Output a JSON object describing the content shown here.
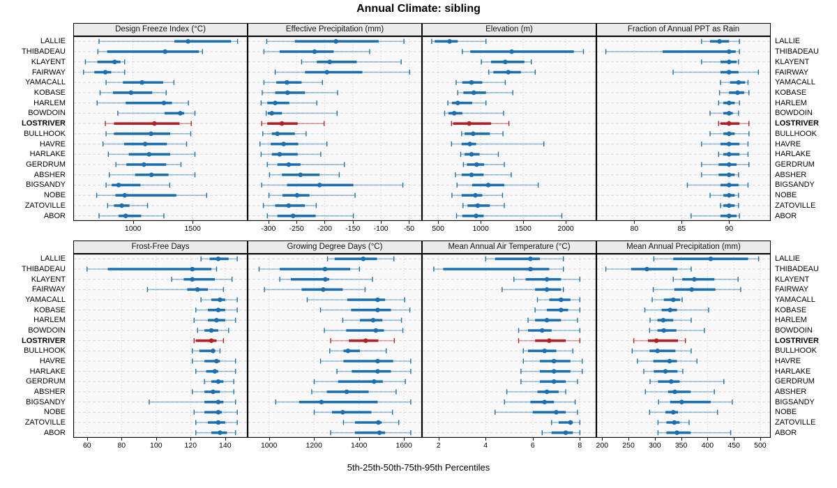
{
  "title": "Annual Climate: sibling",
  "footer": "5th-25th-50th-75th-95th Percentiles",
  "highlight_station": "LOSTRIVER",
  "colors": {
    "series_blue": "#1b6fae",
    "series_blue_light": "rgba(27,111,174,0.42)",
    "highlight_red": "#b41f24",
    "highlight_red_light": "rgba(180,31,36,0.40)",
    "header_bg": "#ebebeb",
    "plot_bg": "#f9f9f9",
    "grid": "#cccccc",
    "border": "#000000"
  },
  "chart_data": {
    "type": "dot-whisker-trellis",
    "percentiles": [
      5,
      25,
      50,
      75,
      95
    ],
    "legend_note": "5th-25th-50th-75th-95th Percentiles",
    "rows": [
      "LALLIE",
      "THIBADEAU",
      "KLAYENT",
      "FAIRWAY",
      "YAMACALL",
      "KOBASE",
      "HARLEM",
      "BOWDOIN",
      "LOSTRIVER",
      "BULLHOOK",
      "HAVRE",
      "HARLAKE",
      "GERDRUM",
      "ABSHER",
      "BIGSANDY",
      "NOBE",
      "ZATOVILLE",
      "ABOR"
    ],
    "panels": [
      {
        "title": "Design Freeze Index (°C)",
        "xlim": [
          500,
          1960
        ],
        "ticks": [
          1000,
          1500
        ],
        "values": [
          [
            716,
            1347,
            1461,
            1821,
            1876
          ],
          [
            706,
            784,
            1269,
            1553,
            1582
          ],
          [
            602,
            702,
            847,
            896,
            931
          ],
          [
            586,
            677,
            769,
            818,
            931
          ],
          [
            775,
            916,
            1076,
            1253,
            1343
          ],
          [
            725,
            833,
            984,
            1161,
            1278
          ],
          [
            700,
            939,
            1259,
            1327,
            1464
          ],
          [
            873,
            1265,
            1396,
            1429,
            1519
          ],
          [
            769,
            841,
            1180,
            1390,
            1488
          ],
          [
            775,
            841,
            1151,
            1312,
            1484
          ],
          [
            749,
            926,
            1102,
            1284,
            1449
          ],
          [
            794,
            965,
            1135,
            1312,
            1519
          ],
          [
            857,
            945,
            1092,
            1278,
            1402
          ],
          [
            802,
            1018,
            1155,
            1298,
            1519
          ],
          [
            775,
            822,
            880,
            1063,
            1308
          ],
          [
            696,
            853,
            931,
            1363,
            1617
          ],
          [
            788,
            841,
            906,
            971,
            1122
          ],
          [
            716,
            880,
            939,
            1069,
            1259
          ]
        ]
      },
      {
        "title": "Effective Precipitation (mm)",
        "xlim": [
          -337,
          -27
        ],
        "ticks": [
          -300,
          -250,
          -200,
          -150,
          -100,
          -50
        ],
        "values": [
          [
            -303,
            -253,
            -180,
            -104,
            -59
          ],
          [
            -308,
            -280,
            -218,
            -184,
            -120
          ],
          [
            -241,
            -214,
            -191,
            -143,
            -64
          ],
          [
            -288,
            -235,
            -196,
            -133,
            -49
          ],
          [
            -308,
            -286,
            -267,
            -241,
            -204
          ],
          [
            -311,
            -288,
            -266,
            -235,
            -177
          ],
          [
            -313,
            -302,
            -288,
            -263,
            -214
          ],
          [
            -304,
            -301,
            -294,
            -276,
            -178
          ],
          [
            -312,
            -302,
            -276,
            -248,
            -201
          ],
          [
            -310,
            -294,
            -284,
            -253,
            -233
          ],
          [
            -315,
            -296,
            -273,
            -247,
            -196
          ],
          [
            -313,
            -294,
            -280,
            -248,
            -207
          ],
          [
            -302,
            -284,
            -264,
            -243,
            -165
          ],
          [
            -298,
            -276,
            -243,
            -209,
            -174
          ],
          [
            -312,
            -267,
            -209,
            -149,
            -61
          ],
          [
            -299,
            -275,
            -249,
            -227,
            -146
          ],
          [
            -309,
            -288,
            -264,
            -235,
            -215
          ],
          [
            -302,
            -284,
            -256,
            -216,
            -149
          ]
        ]
      },
      {
        "title": "Elevation (m)",
        "xlim": [
          310,
          2360
        ],
        "ticks": [
          500,
          1000,
          1500,
          2000
        ],
        "values": [
          [
            424,
            459,
            635,
            730,
            1062
          ],
          [
            784,
            878,
            1365,
            2095,
            2208
          ],
          [
            1008,
            1122,
            1289,
            1514,
            1595
          ],
          [
            1095,
            1149,
            1324,
            1473,
            1641
          ],
          [
            711,
            784,
            892,
            1019,
            1289
          ],
          [
            730,
            797,
            919,
            1062,
            1378
          ],
          [
            614,
            662,
            730,
            900,
            1062
          ],
          [
            576,
            622,
            689,
            784,
            1270
          ],
          [
            657,
            676,
            865,
            1122,
            1332
          ],
          [
            776,
            811,
            911,
            1108,
            1262
          ],
          [
            657,
            776,
            873,
            946,
            1743
          ],
          [
            765,
            811,
            892,
            987,
            1208
          ],
          [
            797,
            838,
            954,
            1041,
            1278
          ],
          [
            703,
            776,
            892,
            1035,
            1359
          ],
          [
            722,
            900,
            1089,
            1278,
            1676
          ],
          [
            662,
            776,
            938,
            1019,
            1257
          ],
          [
            792,
            846,
            965,
            1108,
            1278
          ],
          [
            716,
            784,
            946,
            1035,
            1954
          ]
        ]
      },
      {
        "title": "Fraction of Annual PPT as Rain",
        "xlim": [
          76,
          94.4
        ],
        "ticks": [
          80,
          85,
          90
        ],
        "values": [
          [
            87.1,
            88.0,
            89.0,
            90.0,
            91.1
          ],
          [
            77.0,
            83.0,
            90.0,
            90.7,
            91.1
          ],
          [
            87.1,
            89.1,
            90.0,
            90.8,
            91.0
          ],
          [
            84.1,
            89.1,
            90.0,
            91.0,
            93.1
          ],
          [
            89.1,
            90.1,
            91.0,
            91.7,
            92.0
          ],
          [
            89.0,
            90.0,
            90.9,
            91.6,
            92.1
          ],
          [
            88.9,
            89.4,
            90.0,
            90.6,
            91.1
          ],
          [
            88.0,
            89.4,
            90.0,
            90.4,
            91.0
          ],
          [
            88.9,
            89.1,
            90.0,
            91.1,
            92.1
          ],
          [
            88.0,
            89.4,
            90.0,
            90.6,
            92.1
          ],
          [
            87.1,
            89.1,
            90.0,
            91.1,
            92.0
          ],
          [
            88.9,
            89.4,
            90.0,
            91.1,
            92.0
          ],
          [
            87.1,
            88.9,
            90.0,
            90.8,
            92.1
          ],
          [
            87.1,
            88.9,
            90.0,
            90.6,
            91.0
          ],
          [
            85.6,
            89.1,
            90.0,
            91.0,
            92.0
          ],
          [
            88.0,
            89.4,
            90.0,
            90.6,
            91.0
          ],
          [
            89.1,
            89.4,
            90.0,
            90.6,
            91.0
          ],
          [
            86.0,
            89.1,
            90.0,
            90.8,
            91.1
          ]
        ]
      },
      {
        "title": "Frost-Free Days",
        "xlim": [
          52,
          153
        ],
        "ticks": [
          60,
          80,
          100,
          120,
          140
        ],
        "values": [
          [
            126,
            131,
            136,
            142,
            147
          ],
          [
            60,
            72,
            121,
            132,
            135
          ],
          [
            109,
            116,
            121,
            134,
            144
          ],
          [
            95,
            118,
            124,
            130,
            139
          ],
          [
            126,
            132,
            137,
            140,
            147
          ],
          [
            123,
            130,
            136,
            140,
            147
          ],
          [
            122,
            130,
            135,
            140,
            146
          ],
          [
            124,
            128,
            132,
            136,
            142
          ],
          [
            122,
            123,
            132,
            135,
            139
          ],
          [
            121,
            125,
            133,
            134,
            137
          ],
          [
            121,
            128,
            135,
            137,
            146
          ],
          [
            123,
            129,
            134,
            136,
            146
          ],
          [
            128,
            132,
            136,
            139,
            145
          ],
          [
            121,
            128,
            133,
            137,
            145
          ],
          [
            96,
            128,
            136,
            139,
            146
          ],
          [
            122,
            128,
            136,
            138,
            147
          ],
          [
            123,
            130,
            136,
            140,
            147
          ],
          [
            123,
            132,
            137,
            141,
            146
          ]
        ]
      },
      {
        "title": "Growing Degree Days (°C)",
        "xlim": [
          905,
          1680
        ],
        "ticks": [
          1000,
          1200,
          1400,
          1600
        ],
        "values": [
          [
            1260,
            1292,
            1419,
            1480,
            1555
          ],
          [
            956,
            1048,
            1249,
            1361,
            1402
          ],
          [
            1048,
            1097,
            1250,
            1268,
            1460
          ],
          [
            980,
            1145,
            1241,
            1328,
            1427
          ],
          [
            1170,
            1348,
            1483,
            1516,
            1603
          ],
          [
            1229,
            1365,
            1483,
            1542,
            1626
          ],
          [
            1328,
            1404,
            1463,
            1504,
            1589
          ],
          [
            1246,
            1343,
            1475,
            1511,
            1595
          ],
          [
            1274,
            1355,
            1430,
            1486,
            1557
          ],
          [
            1270,
            1331,
            1351,
            1404,
            1521
          ],
          [
            1229,
            1331,
            1483,
            1552,
            1630
          ],
          [
            1302,
            1368,
            1483,
            1542,
            1630
          ],
          [
            1201,
            1307,
            1467,
            1506,
            1606
          ],
          [
            1190,
            1257,
            1345,
            1443,
            1565
          ],
          [
            1030,
            1134,
            1233,
            1483,
            1630
          ],
          [
            1201,
            1280,
            1328,
            1455,
            1549
          ],
          [
            1331,
            1382,
            1486,
            1501,
            1577
          ],
          [
            1274,
            1382,
            1491,
            1516,
            1630
          ]
        ]
      },
      {
        "title": "Mean Annual Air Temperature (°C)",
        "xlim": [
          1.3,
          8.7
        ],
        "ticks": [
          2,
          4,
          6,
          8
        ],
        "values": [
          [
            4.0,
            4.4,
            5.9,
            6.3,
            7.3
          ],
          [
            1.8,
            2.2,
            5.9,
            6.7,
            7.3
          ],
          [
            5.2,
            5.7,
            6.6,
            7.2,
            8.0
          ],
          [
            4.7,
            6.1,
            6.6,
            7.2,
            7.3
          ],
          [
            6.2,
            6.7,
            7.2,
            7.6,
            8.0
          ],
          [
            6.1,
            6.6,
            7.2,
            7.5,
            8.0
          ],
          [
            5.8,
            6.1,
            6.6,
            7.2,
            7.9
          ],
          [
            5.4,
            5.8,
            6.4,
            6.8,
            8.0
          ],
          [
            5.4,
            6.1,
            6.7,
            7.4,
            8.0
          ],
          [
            5.6,
            5.8,
            6.5,
            7.0,
            7.7
          ],
          [
            5.6,
            6.3,
            6.9,
            7.6,
            8.1
          ],
          [
            5.5,
            6.3,
            6.9,
            7.6,
            8.1
          ],
          [
            5.5,
            6.3,
            6.9,
            7.4,
            7.9
          ],
          [
            4.9,
            6.2,
            6.6,
            7.1,
            7.4
          ],
          [
            4.8,
            5.9,
            6.5,
            6.9,
            7.8
          ],
          [
            4.4,
            6.0,
            7.0,
            7.4,
            7.9
          ],
          [
            6.8,
            7.1,
            7.6,
            7.7,
            8.0
          ],
          [
            6.4,
            6.8,
            7.4,
            7.7,
            8.0
          ]
        ]
      },
      {
        "title": "Mean Annual Precipitation (mm)",
        "xlim": [
          189,
          520
        ],
        "ticks": [
          200,
          250,
          300,
          350,
          400,
          450,
          500
        ],
        "values": [
          [
            298,
            335,
            406,
            477,
            497
          ],
          [
            207,
            255,
            285,
            343,
            369
          ],
          [
            335,
            352,
            375,
            413,
            458
          ],
          [
            297,
            337,
            370,
            415,
            463
          ],
          [
            295,
            317,
            335,
            348,
            352
          ],
          [
            281,
            313,
            329,
            342,
            402
          ],
          [
            291,
            305,
            316,
            335,
            369
          ],
          [
            290,
            305,
            317,
            341,
            394
          ],
          [
            260,
            287,
            303,
            344,
            358
          ],
          [
            257,
            290,
            305,
            339,
            369
          ],
          [
            267,
            297,
            328,
            342,
            380
          ],
          [
            279,
            298,
            320,
            343,
            353
          ],
          [
            291,
            306,
            331,
            347,
            431
          ],
          [
            282,
            325,
            338,
            368,
            413
          ],
          [
            307,
            329,
            351,
            406,
            447
          ],
          [
            290,
            320,
            335,
            344,
            419
          ],
          [
            306,
            322,
            337,
            347,
            365
          ],
          [
            306,
            322,
            342,
            368,
            444
          ]
        ]
      }
    ]
  }
}
